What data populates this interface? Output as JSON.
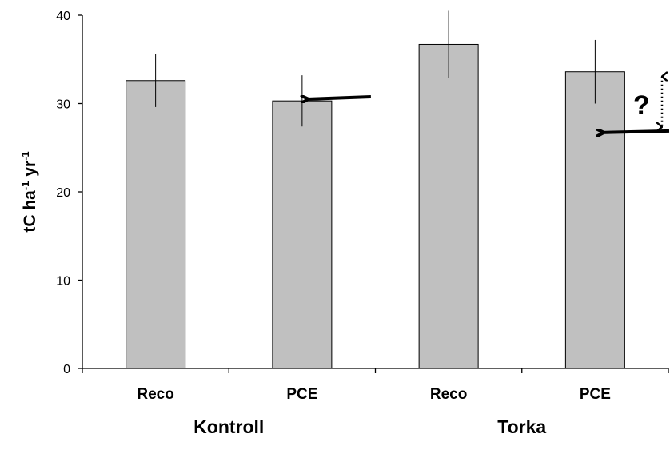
{
  "chart_data": {
    "type": "bar",
    "categories": [
      "Reco",
      "PCE",
      "Reco",
      "PCE"
    ],
    "groups": [
      {
        "label": "Kontroll",
        "categories": [
          "Reco",
          "PCE"
        ]
      },
      {
        "label": "Torka",
        "categories": [
          "Reco",
          "PCE"
        ]
      }
    ],
    "series": [
      {
        "values": [
          32.6,
          30.3,
          36.7,
          33.6
        ],
        "error": [
          3.0,
          2.9,
          3.8,
          3.6
        ]
      }
    ],
    "ylabel": {
      "base": "tC ha",
      "sup1": "-1",
      "mid": " yr",
      "sup2": "-1"
    },
    "ylim": [
      0,
      40
    ],
    "yticks": [
      0,
      10,
      20,
      30,
      40
    ],
    "grid": false,
    "bar_color": "#c0c0c0",
    "annotations": {
      "arrow_pce_kontroll": {
        "points_to_value": 30.5
      },
      "arrow_pce_torka": {
        "points_to_value": 26.8
      },
      "uncertainty": {
        "text": "?",
        "from_value": 26.8,
        "to_value": 33.6
      }
    }
  }
}
